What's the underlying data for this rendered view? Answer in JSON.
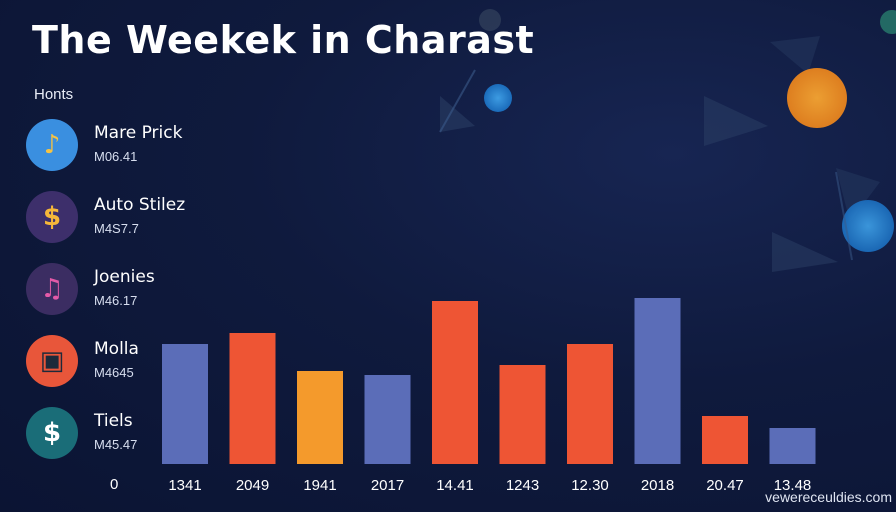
{
  "title": "The Weekek in Charast",
  "section_label": "Honts",
  "list": [
    {
      "name": "Mare Prick",
      "value": "M06.41",
      "icon": "music-note-icon",
      "glyph": "♪",
      "bg": "#3a8fe0",
      "fg": "#f6c342"
    },
    {
      "name": "Auto Stilez",
      "value": "M4S7.7",
      "icon": "dollar-icon",
      "glyph": "$",
      "bg": "#3d2f6b",
      "fg": "#f5b73a"
    },
    {
      "name": "Joenies",
      "value": "M46.17",
      "icon": "music-notes-icon",
      "glyph": "♫",
      "bg": "#3b2d62",
      "fg": "#e45aa8"
    },
    {
      "name": "Molla",
      "value": "M4645",
      "icon": "camera-icon",
      "glyph": "▣",
      "bg": "#e8563a",
      "fg": "#1d2a3a"
    },
    {
      "name": "Tiels",
      "value": "M45.47",
      "icon": "currency-icon",
      "glyph": "$",
      "bg": "#1a6d78",
      "fg": "#ffffff"
    }
  ],
  "zero_label": "0",
  "watermark": "vewereceuldies.com",
  "chart_data": {
    "type": "bar",
    "categories": [
      "1341",
      "2049",
      "1941",
      "2017",
      "14.41",
      "1243",
      "12.30",
      "2018",
      "20.47",
      "13.48"
    ],
    "values": [
      120,
      131,
      93,
      89,
      163,
      99,
      120,
      166,
      48,
      36
    ],
    "colors": [
      "#5b6db8",
      "#ee5534",
      "#f49a2c",
      "#5b6db8",
      "#ee5534",
      "#ee5534",
      "#ee5534",
      "#5b6db8",
      "#ee5534",
      "#5b6db8"
    ],
    "title": "The Weekek in Charast",
    "xlabel": "",
    "ylabel": "",
    "ylim": [
      0,
      166
    ],
    "grid": false,
    "legend": "none"
  }
}
